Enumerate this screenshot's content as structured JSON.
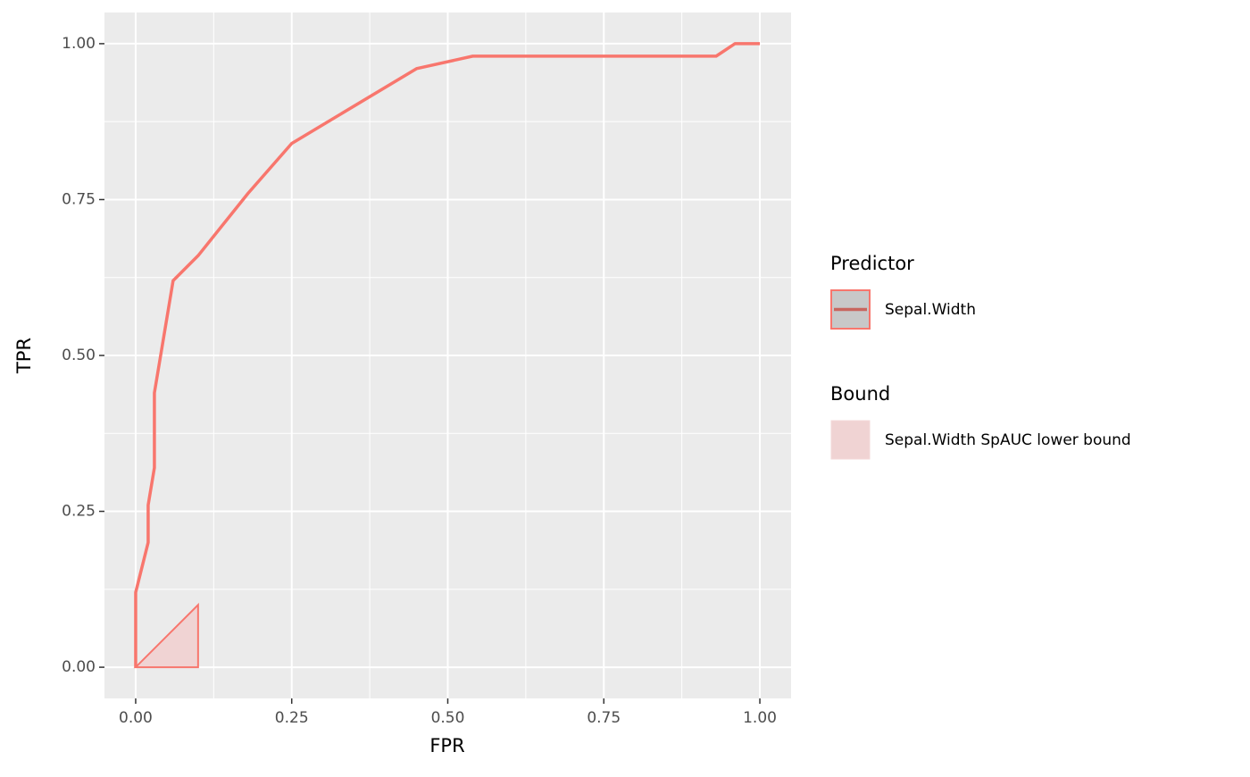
{
  "chart_data": {
    "type": "line",
    "xlabel": "FPR",
    "ylabel": "TPR",
    "xlim": [
      -0.05,
      1.05
    ],
    "ylim": [
      -0.05,
      1.05
    ],
    "xticks": [
      {
        "value": 0,
        "label": "0.00"
      },
      {
        "value": 0.25,
        "label": "0.25"
      },
      {
        "value": 0.5,
        "label": "0.50"
      },
      {
        "value": 0.75,
        "label": "0.75"
      },
      {
        "value": 1,
        "label": "1.00"
      }
    ],
    "yticks": [
      {
        "value": 0,
        "label": "0.00"
      },
      {
        "value": 0.25,
        "label": "0.25"
      },
      {
        "value": 0.5,
        "label": "0.50"
      },
      {
        "value": 0.75,
        "label": "0.75"
      },
      {
        "value": 1,
        "label": "1.00"
      }
    ],
    "xminor": [
      0.125,
      0.375,
      0.625,
      0.875
    ],
    "yminor": [
      0.125,
      0.375,
      0.625,
      0.875
    ],
    "grid": true,
    "series": [
      {
        "name": "Sepal.Width",
        "group": "Predictor",
        "type": "line",
        "color": "#F8766D",
        "x": [
          0,
          0,
          0.02,
          0.02,
          0.03,
          0.03,
          0.06,
          0.1,
          0.18,
          0.25,
          0.45,
          0.54,
          0.93,
          0.96,
          1
        ],
        "values": [
          0,
          0.12,
          0.2,
          0.26,
          0.32,
          0.44,
          0.62,
          0.66,
          0.76,
          0.84,
          0.96,
          0.98,
          0.98,
          1,
          1
        ]
      },
      {
        "name": "Sepal.Width SpAUC lower bound",
        "group": "Bound",
        "type": "area",
        "color": "#F8766D",
        "fill": "#F0D3D3",
        "x": [
          0,
          0.1,
          0.1
        ],
        "values": [
          0,
          0.1,
          0
        ]
      }
    ]
  }
}
